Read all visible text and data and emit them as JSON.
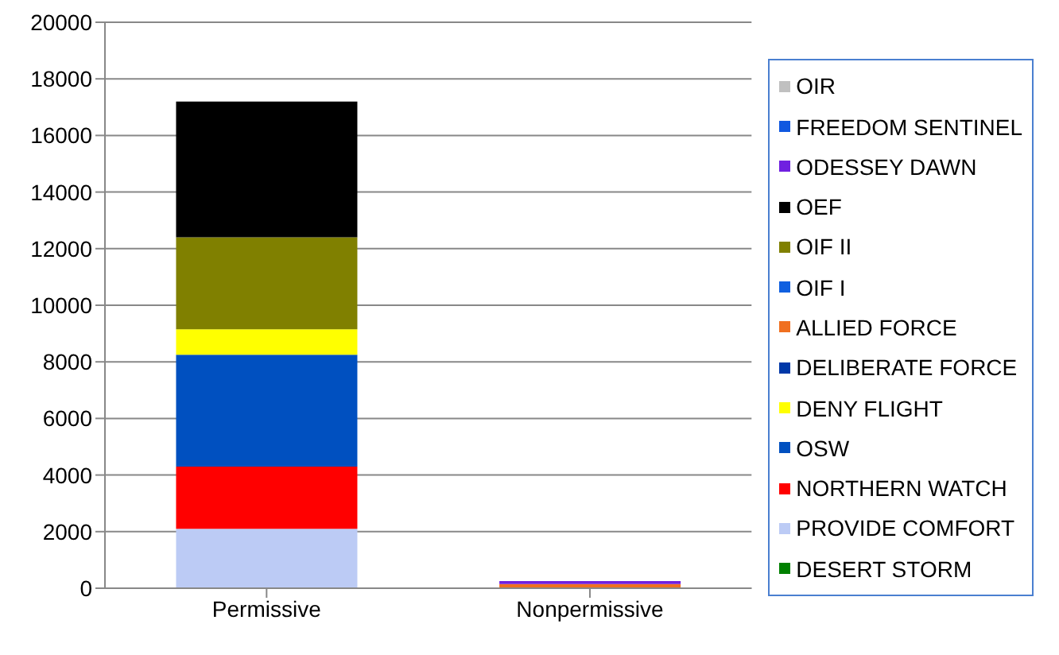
{
  "chart_data": {
    "type": "bar",
    "stacked": true,
    "categories": [
      "Permissive",
      "Nonpermissive"
    ],
    "series": [
      {
        "name": "DESERT STORM",
        "color": "#008000",
        "values": [
          0,
          0
        ]
      },
      {
        "name": "PROVIDE COMFORT",
        "color": "#bccbf5",
        "values": [
          2100,
          0
        ]
      },
      {
        "name": "NORTHERN WATCH",
        "color": "#ff0000",
        "values": [
          2200,
          0
        ]
      },
      {
        "name": "OSW",
        "color": "#0050c0",
        "values": [
          3950,
          0
        ]
      },
      {
        "name": "DENY FLIGHT",
        "color": "#ffff00",
        "values": [
          900,
          0
        ]
      },
      {
        "name": "DELIBERATE FORCE",
        "color": "#0038a8",
        "values": [
          0,
          0
        ]
      },
      {
        "name": "ALLIED FORCE",
        "color": "#f07020",
        "values": [
          0,
          150
        ]
      },
      {
        "name": "OIF I",
        "color": "#1060e0",
        "values": [
          0,
          0
        ]
      },
      {
        "name": "OIF II",
        "color": "#808000",
        "values": [
          3250,
          0
        ]
      },
      {
        "name": "OEF",
        "color": "#000000",
        "values": [
          4800,
          0
        ]
      },
      {
        "name": "ODESSEY DAWN",
        "color": "#7020e0",
        "values": [
          0,
          100
        ]
      },
      {
        "name": "FREEDOM SENTINEL",
        "color": "#1058e0",
        "values": [
          0,
          0
        ]
      },
      {
        "name": "OIR",
        "color": "#c0c0c0",
        "values": [
          0,
          0
        ]
      }
    ],
    "ylim": [
      0,
      20000
    ],
    "yticks": [
      0,
      2000,
      4000,
      6000,
      8000,
      10000,
      12000,
      14000,
      16000,
      18000,
      20000
    ],
    "grid": "y",
    "legend": "right"
  }
}
